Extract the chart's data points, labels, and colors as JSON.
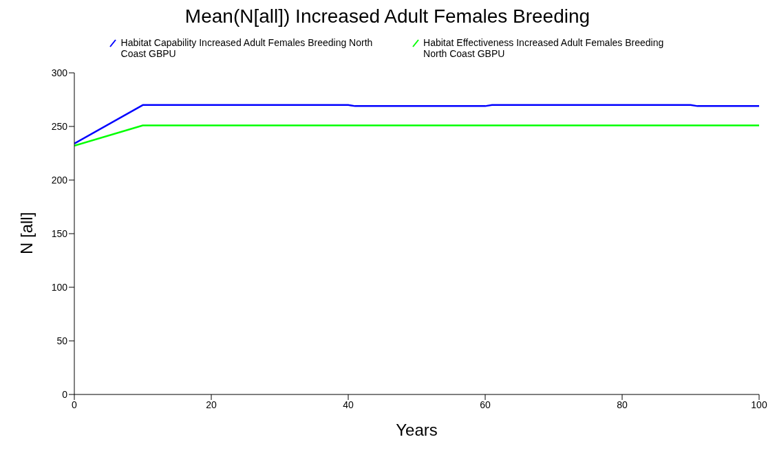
{
  "chart_data": {
    "type": "line",
    "title": "Mean(N[all]) Increased Adult Females Breeding",
    "xlabel": "Years",
    "ylabel": "N [all]",
    "xlim": [
      0,
      100
    ],
    "xticks": [
      0,
      20,
      40,
      60,
      80,
      100
    ],
    "ylim": [
      0,
      300
    ],
    "yticks": [
      0,
      50,
      100,
      150,
      200,
      250,
      300
    ],
    "grid": false,
    "legend": "top left",
    "marker": "none",
    "line_style": "solid",
    "series": [
      {
        "name": "Habitat Capability Increased Adult Females Breeding North Coast GBPU",
        "color": "#0000ff",
        "x": [
          0,
          10,
          40,
          41,
          60,
          61,
          90,
          91,
          100
        ],
        "values": [
          234,
          270,
          270,
          269,
          269,
          270,
          270,
          269,
          269
        ]
      },
      {
        "name": "Habitat Effectiveness Increased Adult Females Breeding North Coast GBPU",
        "color": "#00ff00",
        "x": [
          0,
          10,
          100
        ],
        "values": [
          232,
          251,
          251
        ]
      }
    ]
  }
}
